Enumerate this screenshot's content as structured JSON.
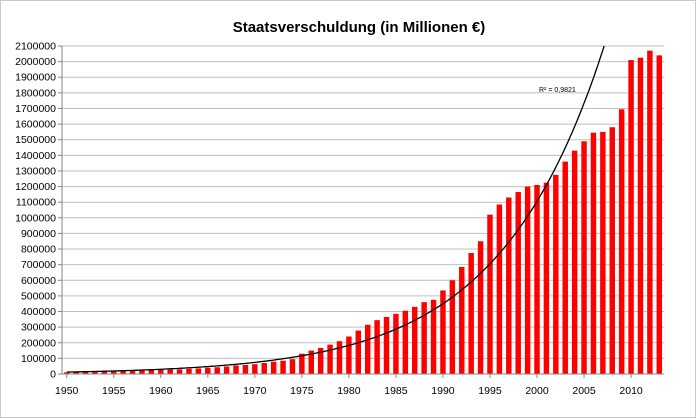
{
  "chart_data": {
    "type": "bar",
    "title": "Staatsverschuldung (in Millionen €)",
    "xlabel": "",
    "ylabel": "",
    "x_start": 1950,
    "x_end": 2013,
    "x_ticks": [
      1950,
      1955,
      1960,
      1965,
      1970,
      1975,
      1980,
      1985,
      1990,
      1995,
      2000,
      2005,
      2010
    ],
    "ylim": [
      0,
      2100000
    ],
    "y_ticks": [
      0,
      100000,
      200000,
      300000,
      400000,
      500000,
      600000,
      700000,
      800000,
      900000,
      1000000,
      1100000,
      1200000,
      1300000,
      1400000,
      1500000,
      1600000,
      1700000,
      1800000,
      1900000,
      2000000,
      2100000
    ],
    "grid": "horizontal",
    "colors": {
      "bars": "#ff0000",
      "trendline": "#000000",
      "grid": "#bfbfbf",
      "axis": "#868686"
    },
    "trendline": {
      "type": "exponential",
      "annotation": "R² = 0,9821"
    },
    "series": [
      {
        "years": [
          1950,
          1951,
          1952,
          1953,
          1954,
          1955,
          1956,
          1957,
          1958,
          1959,
          1960,
          1961,
          1962,
          1963,
          1964,
          1965,
          1966,
          1967,
          1968,
          1969,
          1970,
          1971,
          1972,
          1973,
          1974,
          1975,
          1976,
          1977,
          1978,
          1979,
          1980,
          1981,
          1982,
          1983,
          1984,
          1985,
          1986,
          1987,
          1988,
          1989,
          1990,
          1991,
          1992,
          1993,
          1994,
          1995,
          1996,
          1997,
          1998,
          1999,
          2000,
          2001,
          2002,
          2003,
          2004,
          2005,
          2006,
          2007,
          2008,
          2009,
          2010,
          2011,
          2012,
          2013
        ],
        "values": [
          10000,
          12000,
          14000,
          16000,
          18000,
          20000,
          21000,
          22000,
          23000,
          25000,
          26000,
          28000,
          30000,
          33000,
          36000,
          40000,
          43000,
          48000,
          55000,
          58000,
          63000,
          70000,
          79000,
          85000,
          95000,
          130000,
          150000,
          167000,
          188000,
          210000,
          240000,
          278000,
          315000,
          345000,
          365000,
          385000,
          405000,
          430000,
          460000,
          475000,
          535000,
          600000,
          685000,
          775000,
          850000,
          1020000,
          1085000,
          1130000,
          1165000,
          1200000,
          1210000,
          1225000,
          1275000,
          1360000,
          1430000,
          1490000,
          1545000,
          1550000,
          1580000,
          1695000,
          2010000,
          2025000,
          2070000,
          2040000
        ]
      }
    ]
  }
}
